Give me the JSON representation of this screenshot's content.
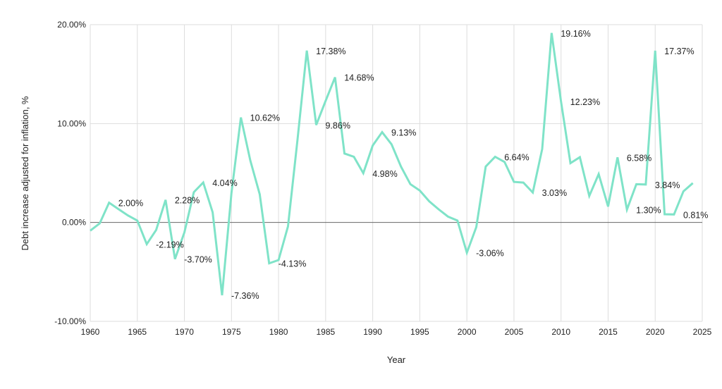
{
  "chart_data": {
    "type": "line",
    "title": "",
    "xlabel": "Year",
    "ylabel": "Debt increase adjusted for inflation, %",
    "xlim": [
      1960,
      2025
    ],
    "ylim": [
      -10,
      20
    ],
    "grid": true,
    "legend": "none",
    "line_color": "#7fe3c8",
    "x_ticks": [
      "1960",
      "1965",
      "1970",
      "1975",
      "1980",
      "1985",
      "1990",
      "1995",
      "2000",
      "2005",
      "2010",
      "2015",
      "2020",
      "2025"
    ],
    "y_ticks": [
      "-10.00%",
      "0.00%",
      "10.00%",
      "20.00%"
    ],
    "x": [
      1960,
      1961,
      1962,
      1963,
      1964,
      1965,
      1966,
      1967,
      1968,
      1969,
      1970,
      1971,
      1972,
      1973,
      1974,
      1975,
      1976,
      1977,
      1978,
      1979,
      1980,
      1981,
      1982,
      1983,
      1984,
      1985,
      1986,
      1987,
      1988,
      1989,
      1990,
      1991,
      1992,
      1993,
      1994,
      1995,
      1996,
      1997,
      1998,
      1999,
      2000,
      2001,
      2002,
      2003,
      2004,
      2005,
      2006,
      2007,
      2008,
      2009,
      2010,
      2011,
      2012,
      2013,
      2014,
      2015,
      2016,
      2017,
      2018,
      2019,
      2020,
      2021,
      2022,
      2023,
      2024
    ],
    "values": [
      -0.83,
      -0.1,
      2.0,
      1.35,
      0.71,
      0.19,
      -2.19,
      -0.76,
      2.28,
      -3.7,
      -1.0,
      3.06,
      4.04,
      1.02,
      -7.36,
      3.0,
      10.62,
      6.26,
      2.85,
      -4.13,
      -3.8,
      -0.4,
      8.26,
      17.38,
      9.86,
      12.3,
      14.68,
      6.97,
      6.64,
      4.98,
      7.78,
      9.13,
      7.9,
      5.65,
      3.87,
      3.23,
      2.14,
      1.33,
      0.59,
      0.19,
      -3.06,
      -0.47,
      5.65,
      6.64,
      6.12,
      4.1,
      4.03,
      3.03,
      7.43,
      19.16,
      12.23,
      6.0,
      6.6,
      2.68,
      4.89,
      1.61,
      6.58,
      1.3,
      3.87,
      3.84,
      17.37,
      0.83,
      0.81,
      3.15,
      3.98
    ],
    "data_labels": [
      {
        "year": 1962,
        "text": "2.00%"
      },
      {
        "year": 1966,
        "text": "-2.19%"
      },
      {
        "year": 1968,
        "text": "2.28%"
      },
      {
        "year": 1969,
        "text": "-3.70%"
      },
      {
        "year": 1972,
        "text": "4.04%"
      },
      {
        "year": 1974,
        "text": "-7.36%"
      },
      {
        "year": 1976,
        "text": "10.62%"
      },
      {
        "year": 1979,
        "text": "-4.13%"
      },
      {
        "year": 1983,
        "text": "17.38%"
      },
      {
        "year": 1984,
        "text": "9.86%"
      },
      {
        "year": 1986,
        "text": "14.68%"
      },
      {
        "year": 1989,
        "text": "4.98%"
      },
      {
        "year": 1991,
        "text": "9.13%"
      },
      {
        "year": 2000,
        "text": "-3.06%"
      },
      {
        "year": 2003,
        "text": "6.64%"
      },
      {
        "year": 2007,
        "text": "3.03%"
      },
      {
        "year": 2009,
        "text": "19.16%"
      },
      {
        "year": 2010,
        "text": "12.23%"
      },
      {
        "year": 2016,
        "text": "6.58%"
      },
      {
        "year": 2017,
        "text": "1.30%"
      },
      {
        "year": 2019,
        "text": "3.84%"
      },
      {
        "year": 2020,
        "text": "17.37%"
      },
      {
        "year": 2022,
        "text": "0.81%"
      }
    ]
  }
}
